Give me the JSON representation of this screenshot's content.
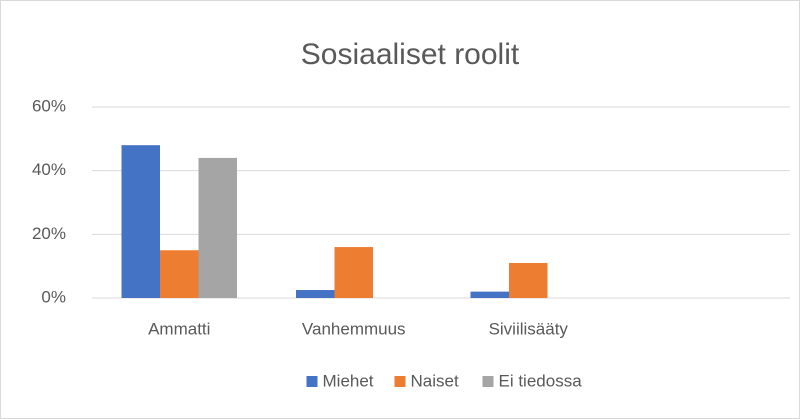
{
  "chart_data": {
    "type": "bar",
    "title": "Sosiaaliset roolit",
    "categories": [
      "Ammatti",
      "Vanhemmuus",
      "Siviilisääty",
      null
    ],
    "series": [
      {
        "name": "Miehet",
        "color": "#4472c4",
        "values": [
          48,
          2.5,
          2,
          null
        ]
      },
      {
        "name": "Naiset",
        "color": "#ed7d31",
        "values": [
          15,
          16,
          11,
          null
        ]
      },
      {
        "name": "Ei tiedossa",
        "color": "#a5a5a5",
        "values": [
          44,
          0,
          0,
          null
        ]
      }
    ],
    "ylim": [
      0,
      60
    ],
    "yticks": [
      {
        "value": 0,
        "label": "0%"
      },
      {
        "value": 20,
        "label": "20%"
      },
      {
        "value": 40,
        "label": "40%"
      },
      {
        "value": 60,
        "label": "60%"
      }
    ],
    "grid": true,
    "legend": "bottom"
  }
}
